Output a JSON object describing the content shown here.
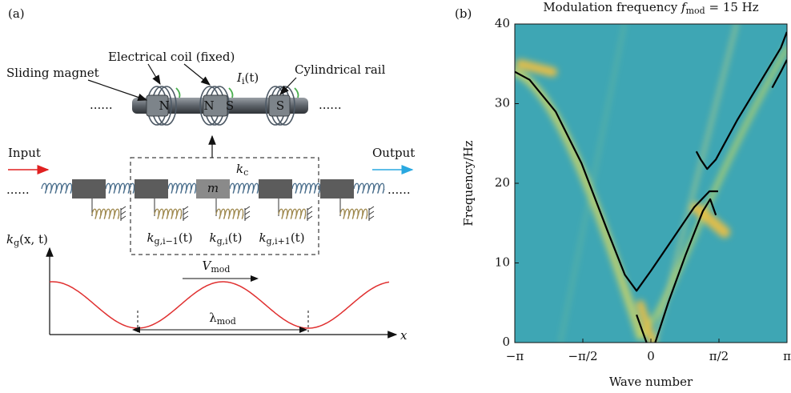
{
  "panel_a": {
    "label": "(a)",
    "coil": "Electrical coil (fixed)",
    "magnet": "Sliding magnet",
    "rail": "Cylindrical rail",
    "current": {
      "main": "I",
      "sub": "i",
      "tail": "(t)"
    },
    "poles": [
      "N",
      "N",
      "S",
      "S"
    ],
    "dots": [
      "......",
      "......",
      "......",
      "......"
    ],
    "input": "Input",
    "output": "Output",
    "kc": {
      "main": "k",
      "sub": "c"
    },
    "mass": "m",
    "stiffness": [
      {
        "main": "k",
        "sub": "g,i−1",
        "tail": "(t)"
      },
      {
        "main": "k",
        "sub": "g,i",
        "tail": "(t)"
      },
      {
        "main": "k",
        "sub": "g,i+1",
        "tail": "(t)"
      }
    ],
    "kg": {
      "main": "k",
      "sub": "g",
      "tail": "(x, t)"
    },
    "vmod": {
      "main": "V",
      "sub": "mod"
    },
    "lambda": {
      "main": "λ",
      "sub": "mod"
    },
    "xaxis": "x"
  },
  "chart_data": {
    "type": "line",
    "label": "(b)",
    "title": {
      "pre": "Modulation frequency ",
      "main": "f",
      "sub": "mod",
      "post": " = 15 Hz"
    },
    "xlabel": "Wave number",
    "ylabel": "Frequency/Hz",
    "xlim": [
      -3.1416,
      3.1416
    ],
    "ylim": [
      0,
      40
    ],
    "xticks": [
      {
        "value": -3.1416,
        "label": "−π"
      },
      {
        "value": -1.5708,
        "label": "−π/2"
      },
      0,
      {
        "value": 1.5708,
        "label": "π/2"
      },
      {
        "value": 3.1416,
        "label": "π"
      }
    ],
    "yticks": [
      0,
      10,
      20,
      30,
      40
    ],
    "series": [
      {
        "color": "#000000",
        "x": [
          -3.14,
          -2.8,
          -2.2,
          -1.6,
          -1.0,
          -0.6,
          -0.33,
          0,
          0.5,
          1.0,
          1.35,
          1.55
        ],
        "values": [
          34,
          33,
          29,
          22.5,
          14,
          8.5,
          6.5,
          9,
          13,
          17,
          19,
          19
        ]
      },
      {
        "color": "#000000",
        "x": [
          -0.33,
          -0.2,
          -0.1
        ],
        "values": [
          3.5,
          1.5,
          0
        ]
      },
      {
        "color": "#000000",
        "x": [
          0.1,
          0.4,
          0.8,
          1.2,
          1.37,
          1.5
        ],
        "values": [
          0,
          5,
          11,
          16.5,
          18,
          16
        ]
      },
      {
        "color": "#000000",
        "x": [
          1.05,
          1.15,
          1.3,
          1.5,
          2.0,
          2.5,
          3.0,
          3.14
        ],
        "values": [
          24,
          23,
          21.8,
          23,
          28,
          32.5,
          37,
          39
        ]
      },
      {
        "color": "#000000",
        "x": [
          2.8,
          3.0,
          3.14
        ],
        "values": [
          32,
          34,
          35.5
        ]
      }
    ]
  }
}
